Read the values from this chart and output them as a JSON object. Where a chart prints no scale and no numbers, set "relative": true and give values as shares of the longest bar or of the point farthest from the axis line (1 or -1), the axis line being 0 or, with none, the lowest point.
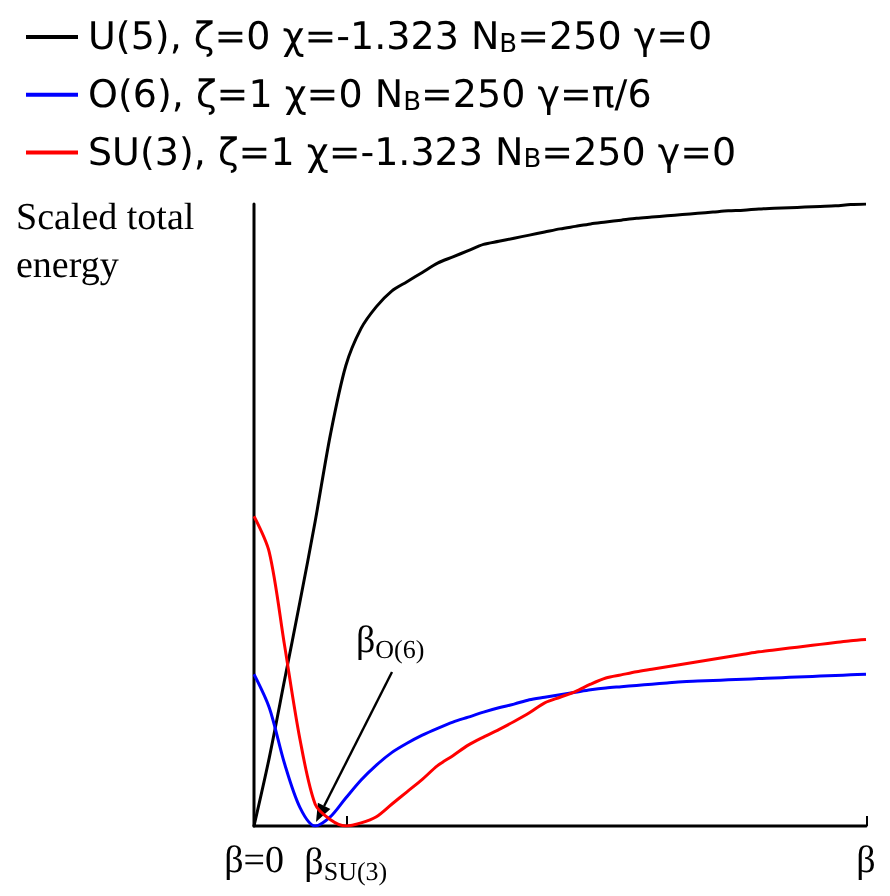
{
  "chart_data": {
    "type": "line",
    "relative": true,
    "ylabel": "Scaled total energy",
    "categories": [
      "β=0",
      null,
      null,
      null,
      null,
      null,
      "β$_{SU(3)}$",
      null,
      null,
      null,
      null,
      null,
      null,
      null,
      null,
      null,
      null,
      null,
      null,
      null,
      null,
      null,
      null,
      null,
      null,
      null,
      null,
      null,
      null,
      null,
      null,
      null,
      null,
      null,
      null,
      null,
      null,
      null,
      null,
      null,
      "β"
    ],
    "legend": "top left",
    "marker": "none",
    "annotations": [
      "β$_{O(6)}$"
    ],
    "series": [
      {
        "name": "U(5), ζ=0 χ=-1.323 N$_{B}$=250 γ=0",
        "color": "#000000",
        "values": [
          0,
          0.11,
          0.235,
          0.36,
          0.49,
          0.63,
          0.74,
          0.8,
          0.835,
          0.86,
          0.875,
          0.89,
          0.905,
          0.915,
          0.925,
          0.935,
          0.94,
          0.945,
          0.95,
          0.955,
          0.96,
          0.964,
          0.968,
          0.971,
          0.974,
          0.977,
          0.979,
          0.981,
          0.983,
          0.985,
          0.987,
          0.989,
          0.99,
          0.992,
          0.993,
          0.994,
          0.995,
          0.996,
          0.997,
          0.999,
          1
        ]
      },
      {
        "name": "O(6), ζ=1 χ=0 N$_{B}$=250 γ=π/6",
        "color": "#0000ff",
        "values": [
          0.244,
          0.19,
          0.1,
          0.03,
          0,
          0.015,
          0.045,
          0.074,
          0.098,
          0.118,
          0.133,
          0.146,
          0.157,
          0.167,
          0.175,
          0.183,
          0.19,
          0.196,
          0.203,
          0.207,
          0.211,
          0.215,
          0.219,
          0.222,
          0.224,
          0.226,
          0.228,
          0.23,
          0.232,
          0.233,
          0.234,
          0.235,
          0.236,
          0.237,
          0.238,
          0.239,
          0.24,
          0.241,
          0.242,
          0.243,
          0.244
        ]
      },
      {
        "name": "SU(3), ζ=1 χ=-1.323 N$_{B}$=250 γ=0",
        "color": "#ff0000",
        "values": [
          0.498,
          0.44,
          0.29,
          0.14,
          0.035,
          0.01,
          0,
          0.005,
          0.015,
          0.035,
          0.055,
          0.075,
          0.097,
          0.113,
          0.13,
          0.143,
          0.155,
          0.168,
          0.182,
          0.198,
          0.207,
          0.216,
          0.228,
          0.238,
          0.243,
          0.248,
          0.252,
          0.256,
          0.26,
          0.264,
          0.268,
          0.272,
          0.276,
          0.28,
          0.283,
          0.286,
          0.289,
          0.292,
          0.295,
          0.298,
          0.3
        ]
      }
    ]
  }
}
